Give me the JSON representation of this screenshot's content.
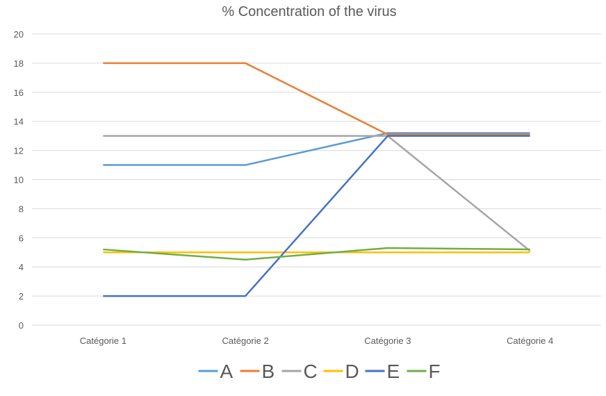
{
  "chart_data": {
    "type": "line",
    "title": "% Concentration of the virus",
    "xlabel": "",
    "ylabel": "",
    "categories": [
      "Catégorie 1",
      "Catégorie 2",
      "Catégorie 3",
      "Catégorie 4"
    ],
    "ylim": [
      0,
      20
    ],
    "yticks": [
      0,
      2,
      4,
      6,
      8,
      10,
      12,
      14,
      16,
      18,
      20
    ],
    "grid": true,
    "legend_position": "bottom",
    "series": [
      {
        "name": "A",
        "color": "#5b9bd5",
        "values": [
          11,
          11,
          13.2,
          13.2
        ]
      },
      {
        "name": "B",
        "color": "#ed7d31",
        "values": [
          18,
          18,
          13.1,
          13.1
        ]
      },
      {
        "name": "C",
        "color": "#a5a5a5",
        "values": [
          13,
          13,
          13,
          5.1
        ]
      },
      {
        "name": "D",
        "color": "#ffc000",
        "values": [
          5,
          5,
          5,
          5
        ]
      },
      {
        "name": "E",
        "color": "#4472c4",
        "values": [
          2,
          2,
          13,
          13
        ]
      },
      {
        "name": "F",
        "color": "#70ad47",
        "values": [
          5.2,
          4.5,
          5.3,
          5.2
        ]
      }
    ]
  }
}
